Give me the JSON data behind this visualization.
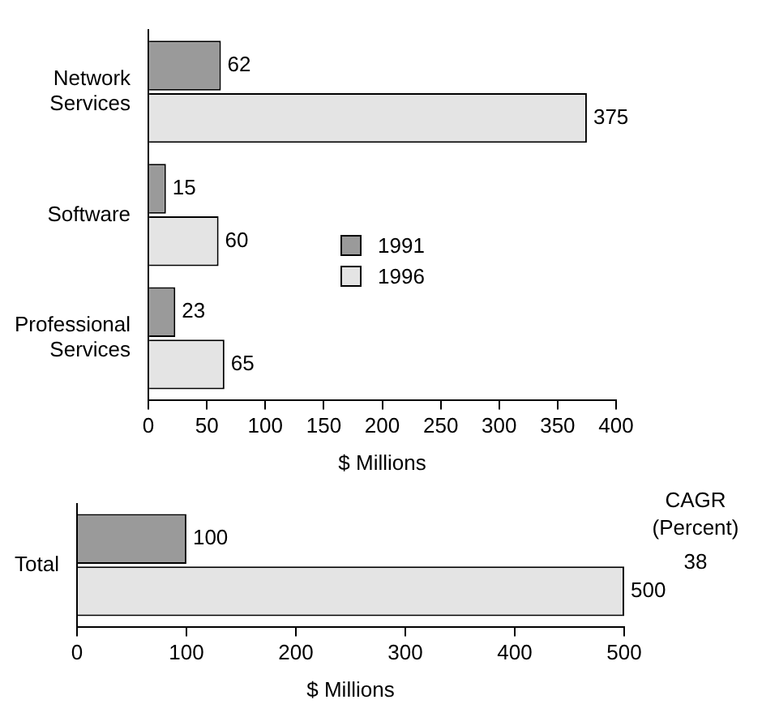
{
  "chart_data": [
    {
      "type": "bar",
      "orientation": "horizontal",
      "categories": [
        "Network Services",
        "Software",
        "Professional Services"
      ],
      "series": [
        {
          "name": "1991",
          "color": "#9a9a9a",
          "values": [
            62,
            15,
            23
          ]
        },
        {
          "name": "1996",
          "color": "#e4e4e4",
          "values": [
            375,
            60,
            65
          ]
        }
      ],
      "xlim": [
        0,
        400
      ],
      "xticks": [
        0,
        50,
        100,
        150,
        200,
        250,
        300,
        350,
        400
      ],
      "xlabel": "$ Millions",
      "data_labels": true,
      "legend": "right",
      "grid": false
    },
    {
      "type": "bar",
      "orientation": "horizontal",
      "categories": [
        "Total"
      ],
      "series": [
        {
          "color": "#9a9a9a",
          "values": [
            100
          ]
        },
        {
          "color": "#e4e4e4",
          "values": [
            500
          ]
        }
      ],
      "xlim": [
        0,
        500
      ],
      "xticks": [
        0,
        100,
        200,
        300,
        400,
        500
      ],
      "xlabel": "$ Millions",
      "data_labels": true,
      "grid": false,
      "annotations": [
        "CAGR (Percent)",
        "38"
      ]
    }
  ]
}
